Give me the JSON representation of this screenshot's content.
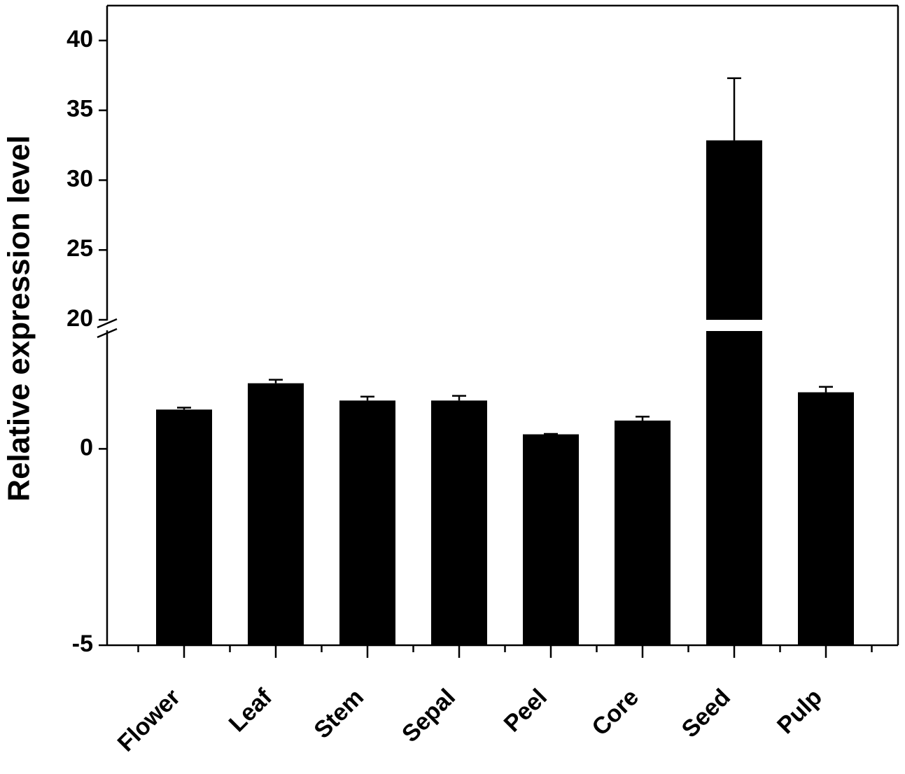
{
  "chart_data": {
    "type": "bar",
    "y_label": "Relative expression level",
    "categories": [
      "Flower",
      "Leaf",
      "Stem",
      "Sepal",
      "Peel",
      "Core",
      "Seed",
      "Pulp"
    ],
    "values": [
      1.0,
      1.67,
      1.23,
      1.23,
      0.37,
      0.72,
      32.85,
      1.44
    ],
    "errors": [
      0.05,
      0.09,
      0.1,
      0.12,
      0.01,
      0.1,
      4.45,
      0.14
    ],
    "color": "#000000",
    "ylim": [
      -5,
      3
    ],
    "ylim_upper": [
      20,
      42.5
    ],
    "yticks": [
      -5,
      0,
      20,
      25,
      30,
      35,
      40
    ],
    "axis_break": true
  }
}
